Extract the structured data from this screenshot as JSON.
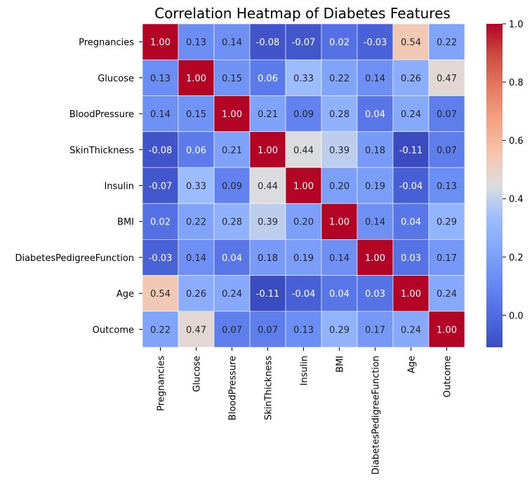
{
  "chart_data": {
    "type": "heatmap",
    "title": "Correlation Heatmap of Diabetes Features",
    "x_categories": [
      "Pregnancies",
      "Glucose",
      "BloodPressure",
      "SkinThickness",
      "Insulin",
      "BMI",
      "DiabetesPedigreeFunction",
      "Age",
      "Outcome"
    ],
    "y_categories": [
      "Pregnancies",
      "Glucose",
      "BloodPressure",
      "SkinThickness",
      "Insulin",
      "BMI",
      "DiabetesPedigreeFunction",
      "Age",
      "Outcome"
    ],
    "values": [
      [
        1.0,
        0.13,
        0.14,
        -0.08,
        -0.07,
        0.02,
        -0.03,
        0.54,
        0.22
      ],
      [
        0.13,
        1.0,
        0.15,
        0.06,
        0.33,
        0.22,
        0.14,
        0.26,
        0.47
      ],
      [
        0.14,
        0.15,
        1.0,
        0.21,
        0.09,
        0.28,
        0.04,
        0.24,
        0.07
      ],
      [
        -0.08,
        0.06,
        0.21,
        1.0,
        0.44,
        0.39,
        0.18,
        -0.11,
        0.07
      ],
      [
        -0.07,
        0.33,
        0.09,
        0.44,
        1.0,
        0.2,
        0.19,
        -0.04,
        0.13
      ],
      [
        0.02,
        0.22,
        0.28,
        0.39,
        0.2,
        1.0,
        0.14,
        0.04,
        0.29
      ],
      [
        -0.03,
        0.14,
        0.04,
        0.18,
        0.19,
        0.14,
        1.0,
        0.03,
        0.17
      ],
      [
        0.54,
        0.26,
        0.24,
        -0.11,
        -0.04,
        0.04,
        0.03,
        1.0,
        0.24
      ],
      [
        0.22,
        0.47,
        0.07,
        0.07,
        0.13,
        0.29,
        0.17,
        0.24,
        1.0
      ]
    ],
    "colormap": "coolwarm",
    "vmin": -0.11,
    "vmax": 1.0,
    "colorbar_ticks": [
      0.0,
      0.2,
      0.4,
      0.6,
      0.8,
      1.0
    ],
    "colorbar_tick_labels": [
      "0.0",
      "0.2",
      "0.4",
      "0.6",
      "0.8",
      "1.0"
    ],
    "annotation_format": "0.00",
    "cell_border_color": "#ffffff",
    "grid": false,
    "legend": "colorbar-right"
  }
}
